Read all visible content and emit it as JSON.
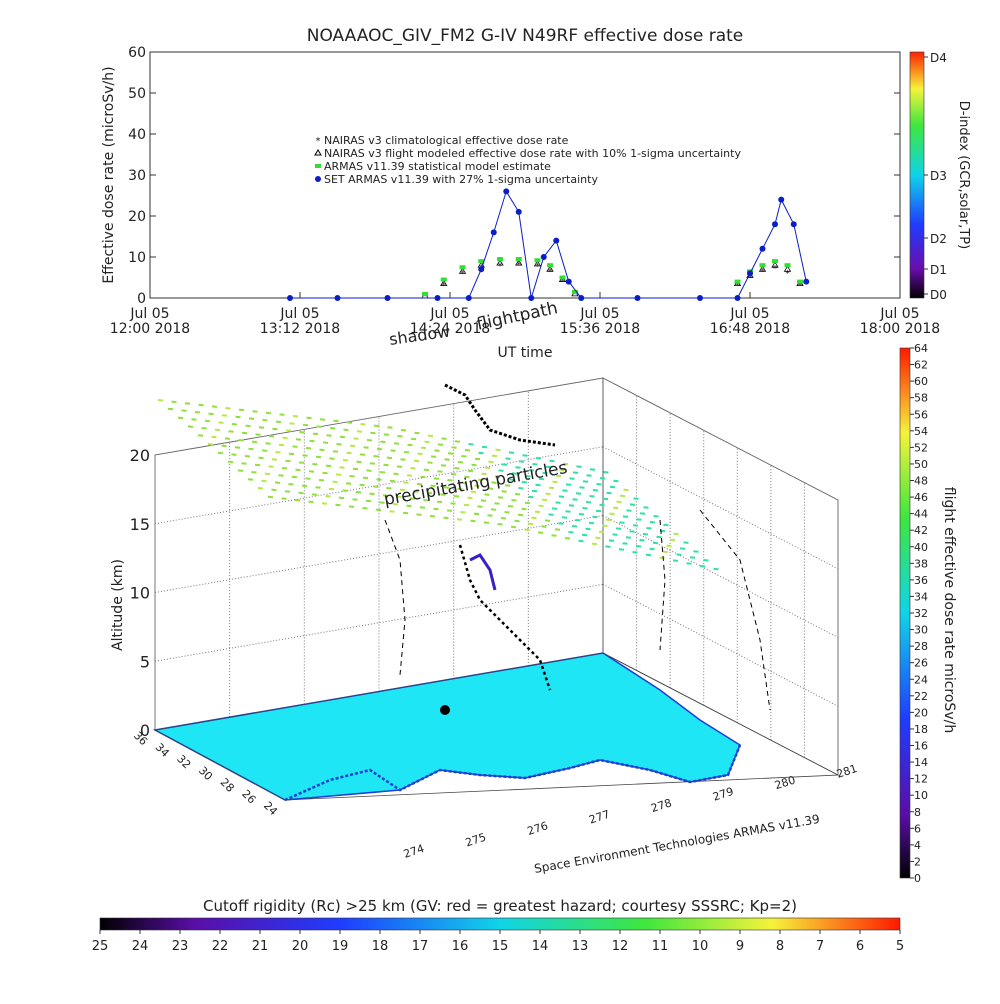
{
  "colors": {
    "nairas_clim": "#c0392b",
    "nairas_flight": "#000000",
    "armas_model": "#33dd33",
    "set_armas": "#0a1ec8",
    "map_land": "#1fe6f5",
    "map_coast": "#1b3fd6",
    "grid": "#444444"
  },
  "chart_data": [
    {
      "type": "scatter",
      "title": "NOAAAOC_GIV_FM2  G-IV    N49RF  effective dose rate",
      "xlabel": "UT time",
      "ylabel": "Effective dose rate (microSv/h)",
      "ylim": [
        0,
        60
      ],
      "yticks": [
        "0",
        "10",
        "20",
        "30",
        "40",
        "50",
        "60"
      ],
      "x_tick_dates": [
        "Jul 05",
        "Jul 05",
        "Jul 05",
        "Jul 05",
        "Jul 05",
        "Jul 05"
      ],
      "x_tick_times": [
        "12:00 2018",
        "13:12 2018",
        "14:24 2018",
        "15:36 2018",
        "16:48 2018",
        "18:00 2018"
      ],
      "xlim_hours": [
        12.0,
        18.0
      ],
      "legend": [
        "NAIRAS v3 climatological effective dose rate",
        "NAIRAS v3 flight modeled effective dose rate with 10% 1-sigma uncertainty",
        "ARMAS v11.39 statistical model estimate",
        "SET ARMAS v11.39 with 27% 1-sigma uncertainty"
      ],
      "legend_placement": "upper-center",
      "series": [
        {
          "name": "NAIRAS v3 climatological effective dose rate",
          "x": [
            14.2,
            14.35,
            14.5,
            14.65,
            14.8,
            14.95,
            15.1,
            15.2,
            15.3,
            15.4,
            16.7,
            16.8,
            16.9,
            17.0,
            17.1,
            17.2
          ],
          "y": [
            0.5,
            3,
            6,
            7.5,
            7.8,
            8,
            7.8,
            6.5,
            4,
            1,
            3,
            5,
            6.5,
            7.2,
            6,
            3
          ]
        },
        {
          "name": "NAIRAS v3 flight modeled effective dose rate with 10% 1-sigma uncertainty",
          "x": [
            14.2,
            14.35,
            14.5,
            14.65,
            14.8,
            14.95,
            15.1,
            15.2,
            15.3,
            15.4,
            16.7,
            16.8,
            16.9,
            17.0,
            17.1,
            17.2
          ],
          "y": [
            0.5,
            3.5,
            6.5,
            8,
            8.5,
            8.5,
            8.3,
            7,
            4.5,
            1,
            3.5,
            5.5,
            7,
            8,
            7,
            3.5
          ]
        },
        {
          "name": "ARMAS v11.39 statistical model estimate",
          "x": [
            14.2,
            14.35,
            14.5,
            14.65,
            14.8,
            14.95,
            15.1,
            15.2,
            15.3,
            15.4,
            16.7,
            16.8,
            16.9,
            17.0,
            17.1,
            17.2
          ],
          "y": [
            1,
            4.5,
            7.5,
            9,
            9.5,
            9.5,
            9.2,
            8,
            5,
            1.5,
            4,
            6.5,
            8,
            9,
            8,
            4
          ]
        },
        {
          "name": "SET ARMAS v11.39 with 27% 1-sigma uncertainty",
          "x": [
            13.12,
            13.5,
            13.9,
            14.3,
            14.55,
            14.65,
            14.75,
            14.85,
            14.95,
            15.05,
            15.15,
            15.25,
            15.35,
            15.45,
            15.9,
            16.4,
            16.7,
            16.8,
            16.9,
            17.0,
            17.05,
            17.15,
            17.25
          ],
          "y": [
            0,
            0,
            0,
            0,
            0,
            7,
            16,
            26,
            21,
            0,
            10,
            14,
            4,
            0,
            0,
            0,
            0,
            6,
            12,
            18,
            24,
            18,
            4
          ]
        }
      ],
      "colorbar": {
        "label": "D-index (GCR,solar,TP)",
        "ticks": [
          "D4",
          "D3",
          "D2",
          "D1",
          "D0"
        ]
      }
    },
    {
      "type": "scatter",
      "title": "",
      "zlabel": "Altitude (km)",
      "zticks": [
        "0",
        "5",
        "10",
        "15",
        "20"
      ],
      "lat_ticks": [
        "36",
        "34",
        "32",
        "30",
        "28",
        "26",
        "24"
      ],
      "lon_ticks": [
        "274",
        "275",
        "276",
        "277",
        "278",
        "279",
        "280",
        "281"
      ],
      "annotations": [
        "flightpath",
        "shadow",
        "precipitating particles"
      ],
      "credit": "Space Environment Technologies ARMAS v11.39",
      "colorbar": {
        "label": "flight effective dose rate microSv/h",
        "range": [
          0,
          64
        ],
        "ticks": [
          "64",
          "62",
          "60",
          "58",
          "56",
          "54",
          "52",
          "50",
          "48",
          "46",
          "44",
          "42",
          "40",
          "38",
          "36",
          "34",
          "32",
          "30",
          "28",
          "26",
          "24",
          "22",
          "20",
          "18",
          "16",
          "14",
          "12",
          "10",
          "8",
          "6",
          "4",
          "2",
          "0"
        ]
      }
    },
    {
      "type": "heatmap",
      "title": "Cutoff rigidity (Rc) >25 km (GV: red = greatest hazard; courtesy SSSRC; Kp=2)",
      "range": [
        25,
        5
      ],
      "ticks": [
        "25",
        "24",
        "23",
        "22",
        "21",
        "20",
        "19",
        "18",
        "17",
        "16",
        "15",
        "14",
        "13",
        "12",
        "11",
        "10",
        "9",
        "8",
        "7",
        "6",
        "5"
      ]
    }
  ]
}
